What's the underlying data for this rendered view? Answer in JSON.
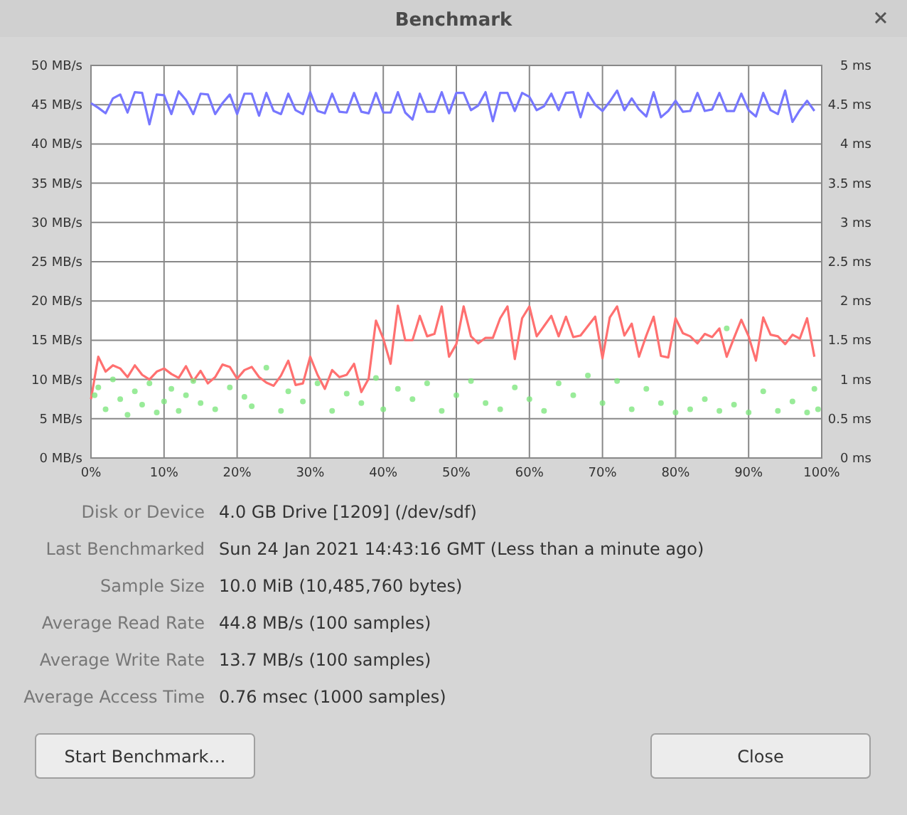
{
  "chart_data": {
    "type": "line",
    "title": "Benchmark",
    "x": [
      0,
      1,
      2,
      3,
      4,
      5,
      6,
      7,
      8,
      9,
      10,
      11,
      12,
      13,
      14,
      15,
      16,
      17,
      18,
      19,
      20,
      21,
      22,
      23,
      24,
      25,
      26,
      27,
      28,
      29,
      30,
      31,
      32,
      33,
      34,
      35,
      36,
      37,
      38,
      39,
      40,
      41,
      42,
      43,
      44,
      45,
      46,
      47,
      48,
      49,
      50,
      51,
      52,
      53,
      54,
      55,
      56,
      57,
      58,
      59,
      60,
      61,
      62,
      63,
      64,
      65,
      66,
      67,
      68,
      69,
      70,
      71,
      72,
      73,
      74,
      75,
      76,
      77,
      78,
      79,
      80,
      81,
      82,
      83,
      84,
      85,
      86,
      87,
      88,
      89,
      90,
      91,
      92,
      93,
      94,
      95,
      96,
      97,
      98,
      99
    ],
    "series": [
      {
        "color": "#7777ff",
        "marker": "none",
        "values": [
          45.2,
          44.6,
          43.9,
          45.8,
          46.3,
          44,
          46.6,
          46.5,
          42.5,
          46.3,
          46.2,
          43.8,
          46.7,
          45.6,
          43.8,
          46.4,
          46.3,
          43.8,
          45.2,
          46.3,
          43.8,
          46.4,
          46.4,
          43.6,
          46.5,
          44.2,
          43.8,
          46.4,
          44.3,
          43.8,
          46.6,
          44.2,
          43.9,
          46.4,
          44.1,
          44,
          46.5,
          44.1,
          43.9,
          46.5,
          44,
          44,
          46.6,
          44,
          43.1,
          46.4,
          44.1,
          44.1,
          46.6,
          43.9,
          46.5,
          46.5,
          44.3,
          44.9,
          46.6,
          42.9,
          46.5,
          46.5,
          44.2,
          46.5,
          46,
          44.3,
          44.8,
          46.4,
          44.3,
          46.5,
          46.6,
          43.4,
          46.5,
          45,
          44.2,
          45.4,
          46.8,
          44.3,
          45.8,
          44.4,
          43.5,
          46.6,
          43.4,
          44.2,
          45.5,
          44.1,
          44.2,
          46.5,
          44.2,
          44.4,
          46.5,
          44.2,
          44.2,
          46.4,
          44.3,
          43.5,
          46.5,
          44.3,
          43.8,
          46.8,
          42.8,
          44.3,
          45.5,
          44.2
        ]
      },
      {
        "color": "#ff7070",
        "marker": "none",
        "values": [
          7.5,
          12.9,
          11,
          11.8,
          11.4,
          10.3,
          11.8,
          10.6,
          10,
          11,
          11.4,
          10.7,
          10.2,
          11.7,
          9.8,
          11.1,
          9.5,
          10.3,
          11.9,
          11.6,
          10.1,
          11.2,
          11.6,
          10.3,
          9.6,
          9.2,
          10.5,
          12.4,
          9.3,
          9.5,
          12.9,
          10.6,
          8.8,
          11.2,
          10.3,
          10.6,
          12,
          8.4,
          10.1,
          17.5,
          15.2,
          12,
          19.4,
          15,
          15,
          18.1,
          15.5,
          15.8,
          19.3,
          12.9,
          14.5,
          19.3,
          15.5,
          14.6,
          15.3,
          15.3,
          17.8,
          19.3,
          12.6,
          17.8,
          19.3,
          15.5,
          16.8,
          18.1,
          15.5,
          18,
          15.4,
          15.6,
          16.8,
          18,
          12.7,
          17.9,
          19.3,
          15.6,
          17.1,
          12.9,
          15.6,
          18,
          13,
          12.8,
          17.8,
          15.9,
          15.5,
          14.6,
          15.8,
          15.4,
          16.5,
          12.9,
          15.3,
          17.6,
          15.5,
          12.4,
          17.9,
          15.7,
          15.5,
          14.5,
          15.7,
          15.2,
          17.8,
          12.9
        ]
      },
      {
        "type": "scatter",
        "axis": "y2",
        "color": "#7fe67f",
        "marker": "circle",
        "x": [
          0.5,
          1,
          2,
          3,
          4,
          5,
          6,
          7,
          8,
          9,
          10,
          11,
          12,
          13,
          14,
          15,
          17,
          19,
          21,
          22,
          24,
          26,
          27,
          29,
          31,
          33,
          35,
          37,
          39,
          40,
          42,
          44,
          46,
          48,
          50,
          52,
          54,
          56,
          58,
          60,
          62,
          64,
          66,
          68,
          70,
          72,
          74,
          76,
          78,
          80,
          82,
          84,
          86,
          87,
          88,
          90,
          92,
          94,
          96,
          98,
          99,
          99.5
        ],
        "values": [
          0.8,
          0.9,
          0.62,
          1.0,
          0.75,
          0.55,
          0.85,
          0.68,
          0.95,
          0.58,
          0.72,
          0.88,
          0.6,
          0.8,
          0.98,
          0.7,
          0.62,
          0.9,
          0.78,
          0.66,
          1.15,
          0.6,
          0.85,
          0.72,
          0.95,
          0.6,
          0.82,
          0.7,
          1.02,
          0.62,
          0.88,
          0.75,
          0.95,
          0.6,
          0.8,
          0.98,
          0.7,
          0.62,
          0.9,
          0.75,
          0.6,
          0.95,
          0.8,
          1.05,
          0.7,
          0.98,
          0.62,
          0.88,
          0.7,
          0.58,
          0.62,
          0.75,
          0.6,
          1.65,
          0.68,
          0.58,
          0.85,
          0.6,
          0.72,
          0.58,
          0.88,
          0.62
        ]
      }
    ],
    "xlim": [
      0,
      100
    ],
    "xticks": [
      {
        "value": 0,
        "label": "0%"
      },
      {
        "value": 10,
        "label": "10%"
      },
      {
        "value": 20,
        "label": "20%"
      },
      {
        "value": 30,
        "label": "30%"
      },
      {
        "value": 40,
        "label": "40%"
      },
      {
        "value": 50,
        "label": "50%"
      },
      {
        "value": 60,
        "label": "60%"
      },
      {
        "value": 70,
        "label": "70%"
      },
      {
        "value": 80,
        "label": "80%"
      },
      {
        "value": 90,
        "label": "90%"
      },
      {
        "value": 100,
        "label": "100%"
      }
    ],
    "ylim": [
      0,
      50
    ],
    "yticks": [
      {
        "value": 0,
        "label": "0 MB/s"
      },
      {
        "value": 5,
        "label": "5 MB/s"
      },
      {
        "value": 10,
        "label": "10 MB/s"
      },
      {
        "value": 15,
        "label": "15 MB/s"
      },
      {
        "value": 20,
        "label": "20 MB/s"
      },
      {
        "value": 25,
        "label": "25 MB/s"
      },
      {
        "value": 30,
        "label": "30 MB/s"
      },
      {
        "value": 35,
        "label": "35 MB/s"
      },
      {
        "value": 40,
        "label": "40 MB/s"
      },
      {
        "value": 45,
        "label": "45 MB/s"
      },
      {
        "value": 50,
        "label": "50 MB/s"
      }
    ],
    "y2lim": [
      0,
      5
    ],
    "y2ticks": [
      {
        "value": 0,
        "label": "0 ms"
      },
      {
        "value": 0.5,
        "label": "0.5 ms"
      },
      {
        "value": 1,
        "label": "1 ms"
      },
      {
        "value": 1.5,
        "label": "1.5 ms"
      },
      {
        "value": 2,
        "label": "2 ms"
      },
      {
        "value": 2.5,
        "label": "2.5 ms"
      },
      {
        "value": 3,
        "label": "3 ms"
      },
      {
        "value": 3.5,
        "label": "3.5 ms"
      },
      {
        "value": 4,
        "label": "4 ms"
      },
      {
        "value": 4.5,
        "label": "4.5 ms"
      },
      {
        "value": 5,
        "label": "5 ms"
      }
    ],
    "grid": true,
    "annotations": [
      "Disk or Device",
      "4.0 GB Drive [1209] (/dev/sdf)",
      "Last Benchmarked",
      "Sun 24 Jan 2021 14:43:16 GMT (Less than a minute ago)",
      "Sample Size",
      "10.0 MiB (10,485,760 bytes)",
      "Average Read Rate",
      "44.8 MB/s (100 samples)",
      "Average Write Rate",
      "13.7 MB/s (100 samples)",
      "Average Access Time",
      "0.76 msec (1000 samples)",
      "Start Benchmark…",
      "Close"
    ]
  }
}
